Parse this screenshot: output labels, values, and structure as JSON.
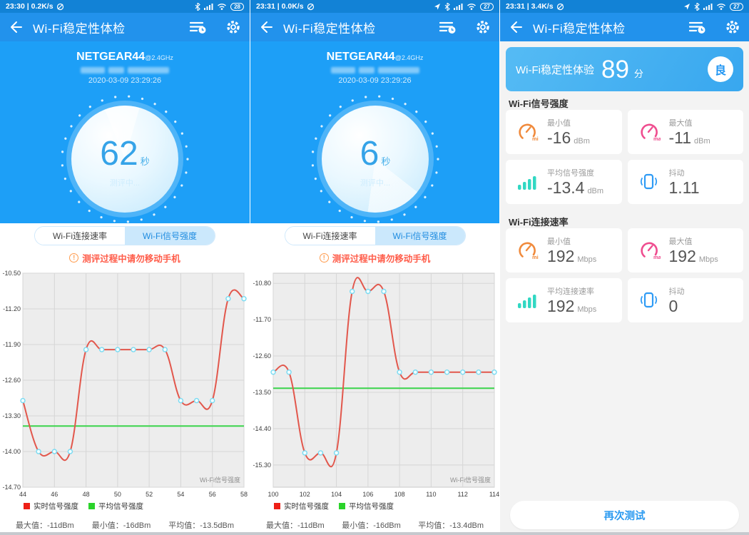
{
  "screens": [
    {
      "status": {
        "left": "23:30 | 0.2K/s",
        "battery": "28"
      },
      "header": {
        "title": "Wi-Fi稳定性体检"
      },
      "panel": {
        "ssid": "NETGEAR44",
        "band": "@2.4GHz",
        "timestamp": "2020-03-09 23:29:26",
        "seconds": "62",
        "seconds_unit": "秒",
        "state": "测评中..."
      },
      "tabs": [
        {
          "label": "Wi-Fi连接速率"
        },
        {
          "label": "Wi-Fi信号强度"
        }
      ],
      "warning_mark": "!",
      "warning": "测评过程中请勿移动手机",
      "legend": [
        {
          "label": "实时信号强度",
          "color": "#ee1f16"
        },
        {
          "label": "平均信号强度",
          "color": "#2bd32b"
        }
      ],
      "stats": [
        {
          "label": "最大值：",
          "value": "-11dBm"
        },
        {
          "label": "最小值：",
          "value": "-16dBm"
        },
        {
          "label": "平均值：",
          "value": "-13.5dBm"
        }
      ]
    },
    {
      "status": {
        "left": "23:31 | 0.0K/s",
        "battery": "27"
      },
      "header": {
        "title": "Wi-Fi稳定性体检"
      },
      "panel": {
        "ssid": "NETGEAR44",
        "band": "@2.4GHz",
        "timestamp": "2020-03-09 23:29:26",
        "seconds": "6",
        "seconds_unit": "秒",
        "state": "测评中..."
      },
      "tabs": [
        {
          "label": "Wi-Fi连接速率"
        },
        {
          "label": "Wi-Fi信号强度"
        }
      ],
      "warning_mark": "!",
      "warning": "测评过程中请勿移动手机",
      "legend": [
        {
          "label": "实时信号强度",
          "color": "#ee1f16"
        },
        {
          "label": "平均信号强度",
          "color": "#2bd32b"
        }
      ],
      "stats": [
        {
          "label": "最大值：",
          "value": "-11dBm"
        },
        {
          "label": "最小值：",
          "value": "-16dBm"
        },
        {
          "label": "平均值：",
          "value": "-13.4dBm"
        }
      ]
    },
    {
      "status": {
        "left": "23:31 | 3.4K/s",
        "battery": "27"
      },
      "header": {
        "title": "Wi-Fi稳定性体检"
      },
      "score": {
        "label": "Wi-Fi稳定性体验",
        "value": "89",
        "unit": "分",
        "grade": "良"
      },
      "sections": [
        {
          "title": "Wi-Fi信号强度",
          "cards": [
            {
              "icon": "gauge-min-icon",
              "label": "最小值",
              "value": "-16",
              "unit": "dBm"
            },
            {
              "icon": "gauge-max-icon",
              "label": "最大值",
              "value": "-11",
              "unit": "dBm"
            },
            {
              "icon": "signal-bars-icon",
              "label": "平均信号强度",
              "value": "-13.4",
              "unit": "dBm"
            },
            {
              "icon": "vibrate-icon",
              "label": "抖动",
              "value": "1.11",
              "unit": ""
            }
          ]
        },
        {
          "title": "Wi-Fi连接速率",
          "cards": [
            {
              "icon": "gauge-min-icon",
              "label": "最小值",
              "value": "192",
              "unit": "Mbps"
            },
            {
              "icon": "gauge-max-icon",
              "label": "最大值",
              "value": "192",
              "unit": "Mbps"
            },
            {
              "icon": "signal-bars-icon",
              "label": "平均连接速率",
              "value": "192",
              "unit": "Mbps"
            },
            {
              "icon": "vibrate-icon",
              "label": "抖动",
              "value": "0",
              "unit": ""
            }
          ]
        }
      ],
      "retry_button": "再次测试"
    }
  ],
  "chart_data": [
    {
      "type": "line",
      "x": [
        44,
        45,
        46,
        47,
        48,
        49,
        50,
        51,
        52,
        53,
        54,
        55,
        56,
        57,
        58
      ],
      "series": [
        {
          "name": "实时信号强度",
          "color": "#e2574c",
          "values": [
            -13,
            -14,
            -14,
            -14,
            -12,
            -12,
            -12,
            -12,
            -12,
            -12,
            -13,
            -13,
            -13,
            -11,
            -11
          ]
        }
      ],
      "avg_line": {
        "name": "平均信号强度",
        "value": -13.5,
        "color": "#3bd44c"
      },
      "yticks": [
        -10.5,
        -11.2,
        -11.9,
        -12.6,
        -13.3,
        -14.0,
        -14.7
      ],
      "ylim": [
        -10.5,
        -14.7
      ],
      "xtick_step": 2,
      "inplot_label": "Wi-Fi信号强度",
      "grid": true,
      "legend_position": "bottom",
      "stats": {
        "max_dBm": -11,
        "min_dBm": -16,
        "avg_dBm": -13.5
      }
    },
    {
      "type": "line",
      "x": [
        100,
        101,
        102,
        103,
        104,
        105,
        106,
        107,
        108,
        109,
        110,
        111,
        112,
        113,
        114
      ],
      "series": [
        {
          "name": "实时信号强度",
          "color": "#e2574c",
          "values": [
            -13,
            -13,
            -15,
            -15,
            -15,
            -11,
            -11,
            -11,
            -13,
            -13,
            -13,
            -13,
            -13,
            -13,
            -13
          ]
        }
      ],
      "avg_line": {
        "name": "平均信号强度",
        "value": -13.4,
        "color": "#3bd44c"
      },
      "yticks": [
        -10.8,
        -11.7,
        -12.6,
        -13.5,
        -14.4,
        -15.3
      ],
      "ylim": [
        -10.55,
        -15.85
      ],
      "xtick_step": 2,
      "inplot_label": "Wi-Fi信号强度",
      "grid": true,
      "legend_position": "bottom",
      "stats": {
        "max_dBm": -11,
        "min_dBm": -16,
        "avg_dBm": -13.4
      }
    }
  ]
}
